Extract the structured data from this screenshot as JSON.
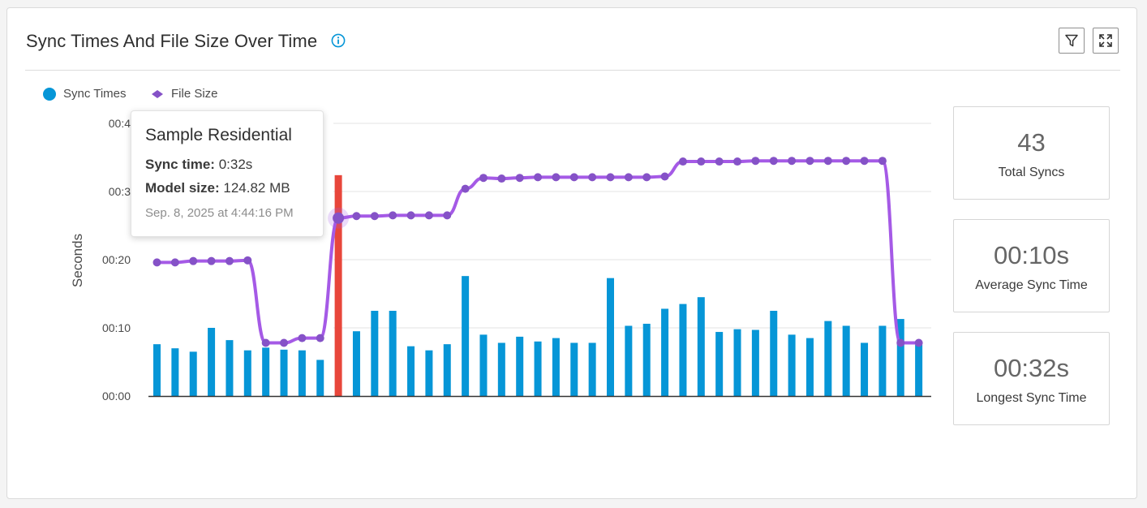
{
  "widget": {
    "title": "Sync Times And File Size Over Time",
    "info_icon": "info-circle-icon",
    "filter_icon": "filter-funnel-icon",
    "expand_icon": "expand-arrows-icon"
  },
  "legend": {
    "sync_times": "Sync Times",
    "file_size": "File Size"
  },
  "colors": {
    "sync_bar": "#0696d7",
    "highlight_bar": "#e8463b",
    "file_size_line": "#a55ae6",
    "file_size_point": "#8552c7"
  },
  "chart_data": {
    "type": "bar+line",
    "ylabel": "Seconds",
    "y_tick_labels": [
      "00:00",
      "00:10",
      "00:20",
      "00:3",
      "00:4"
    ],
    "ylim_seconds": [
      0,
      40
    ],
    "grid": true,
    "legend_placement": "top-left",
    "series": [
      {
        "name": "Sync Times",
        "kind": "bar",
        "unit": "seconds",
        "values": [
          7.6,
          7.0,
          6.5,
          10.0,
          8.2,
          6.7,
          7.1,
          6.8,
          6.7,
          5.3,
          32.4,
          9.5,
          12.5,
          12.5,
          7.3,
          6.7,
          7.6,
          17.6,
          9.0,
          7.8,
          8.7,
          8.0,
          8.5,
          7.8,
          7.8,
          17.3,
          10.3,
          10.6,
          12.8,
          13.5,
          14.5,
          9.4,
          9.8,
          9.7,
          12.5,
          9.0,
          8.5,
          11.0,
          10.3,
          7.8,
          10.3,
          11.3,
          7.5
        ],
        "highlight_index": 10
      },
      {
        "name": "File Size",
        "kind": "line",
        "unit": "seconds-axis equivalent",
        "values": [
          19.6,
          19.6,
          19.8,
          19.8,
          19.8,
          19.9,
          7.8,
          7.8,
          8.5,
          8.5,
          26.1,
          26.4,
          26.4,
          26.5,
          26.5,
          26.5,
          26.5,
          30.4,
          32.0,
          31.9,
          32.0,
          32.1,
          32.1,
          32.1,
          32.1,
          32.1,
          32.1,
          32.1,
          32.2,
          34.4,
          34.4,
          34.4,
          34.4,
          34.5,
          34.5,
          34.5,
          34.5,
          34.5,
          34.5,
          34.5,
          34.5,
          7.8,
          7.8
        ]
      }
    ]
  },
  "tooltip": {
    "project": "Sample Residential",
    "sync_label": "Sync time:",
    "sync_value": "0:32s",
    "size_label": "Model size:",
    "size_value": "124.82 MB",
    "date": "Sep. 8, 2025 at 4:44:16 PM"
  },
  "stats": [
    {
      "value": "43",
      "label": "Total Syncs"
    },
    {
      "value": "00:10s",
      "label": "Average Sync Time"
    },
    {
      "value": "00:32s",
      "label": "Longest Sync Time"
    }
  ]
}
